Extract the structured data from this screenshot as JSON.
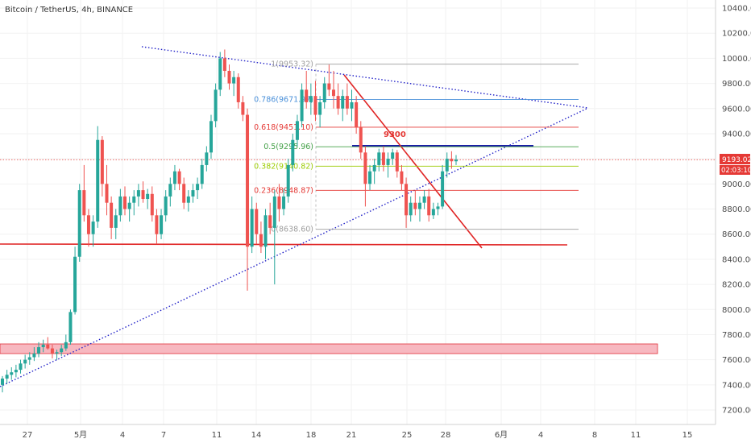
{
  "chart_data": {
    "type": "candlestick",
    "title": "Bitcoin / TetherUS, 4h, BINANCE",
    "ylim": [
      7100,
      10500
    ],
    "y_ticks": [
      7200,
      7400,
      7600,
      7800,
      8000,
      8200,
      8400,
      8600,
      8800,
      9000,
      9200,
      9400,
      9600,
      9800,
      10000,
      10200,
      10400
    ],
    "x_ticks": [
      "27",
      "5月",
      "4",
      "7",
      "11",
      "14",
      "18",
      "21",
      "25",
      "28",
      "6月",
      "4",
      "8",
      "11",
      "15"
    ],
    "last_price": "9193.02",
    "countdown": "02:03:10",
    "annotation": "9300",
    "fib_levels": [
      {
        "ratio": 1,
        "label": "1(9953.32)",
        "value": 9953.32,
        "color": "#9e9e9e"
      },
      {
        "ratio": 0.786,
        "label": "0.786(9671.97)",
        "value": 9671.97,
        "color": "#4a90d9"
      },
      {
        "ratio": 0.618,
        "label": "0.618(9451.10)",
        "value": 9451.1,
        "color": "#e53935"
      },
      {
        "ratio": 0.5,
        "label": "0.5(9295.96)",
        "value": 9295.96,
        "color": "#43a047"
      },
      {
        "ratio": 0.382,
        "label": "0.382(9140.82)",
        "value": 9140.82,
        "color": "#9ccc00"
      },
      {
        "ratio": 0.236,
        "label": "0.236(8948.87)",
        "value": 8948.87,
        "color": "#e53935"
      },
      {
        "ratio": 0,
        "label": "0(8638.60)",
        "value": 8638.6,
        "color": "#9e9e9e"
      }
    ],
    "candles": [
      [
        7400,
        7470,
        7340,
        7450
      ],
      [
        7450,
        7520,
        7410,
        7480
      ],
      [
        7480,
        7540,
        7440,
        7500
      ],
      [
        7500,
        7560,
        7460,
        7520
      ],
      [
        7520,
        7600,
        7490,
        7570
      ],
      [
        7570,
        7640,
        7530,
        7600
      ],
      [
        7600,
        7660,
        7560,
        7620
      ],
      [
        7620,
        7700,
        7590,
        7650
      ],
      [
        7650,
        7740,
        7620,
        7700
      ],
      [
        7700,
        7760,
        7660,
        7720
      ],
      [
        7720,
        7780,
        7680,
        7690
      ],
      [
        7690,
        7720,
        7610,
        7650
      ],
      [
        7650,
        7680,
        7600,
        7660
      ],
      [
        7660,
        7720,
        7630,
        7690
      ],
      [
        7690,
        7800,
        7670,
        7740
      ],
      [
        7740,
        8000,
        7720,
        7980
      ],
      [
        7980,
        8500,
        7960,
        8420
      ],
      [
        8420,
        9000,
        8380,
        8950
      ],
      [
        8950,
        9150,
        8700,
        8750
      ],
      [
        8750,
        8800,
        8500,
        8600
      ],
      [
        8600,
        8750,
        8500,
        8700
      ],
      [
        8700,
        9460,
        8650,
        9350
      ],
      [
        9350,
        9380,
        8900,
        9000
      ],
      [
        9000,
        9150,
        8750,
        8850
      ],
      [
        8850,
        8900,
        8560,
        8650
      ],
      [
        8650,
        8800,
        8560,
        8750
      ],
      [
        8750,
        8960,
        8700,
        8900
      ],
      [
        8900,
        8980,
        8750,
        8800
      ],
      [
        8800,
        8900,
        8700,
        8850
      ],
      [
        8850,
        8950,
        8750,
        8900
      ],
      [
        8900,
        9000,
        8820,
        8950
      ],
      [
        8950,
        9020,
        8850,
        8880
      ],
      [
        8880,
        8960,
        8800,
        8920
      ],
      [
        8920,
        8980,
        8700,
        8750
      ],
      [
        8750,
        8800,
        8520,
        8600
      ],
      [
        8600,
        8800,
        8560,
        8750
      ],
      [
        8750,
        8950,
        8700,
        8900
      ],
      [
        8900,
        9050,
        8820,
        9000
      ],
      [
        9000,
        9150,
        8950,
        9100
      ],
      [
        9100,
        9120,
        8950,
        9000
      ],
      [
        9000,
        9050,
        8800,
        8850
      ],
      [
        8850,
        8950,
        8780,
        8900
      ],
      [
        8900,
        9000,
        8850,
        8950
      ],
      [
        8950,
        9050,
        8880,
        9000
      ],
      [
        9000,
        9200,
        8960,
        9150
      ],
      [
        9150,
        9300,
        9100,
        9250
      ],
      [
        9250,
        9550,
        9200,
        9500
      ],
      [
        9500,
        9800,
        9450,
        9750
      ],
      [
        9750,
        10050,
        9700,
        10000
      ],
      [
        10000,
        10070,
        9850,
        9900
      ],
      [
        9900,
        9950,
        9750,
        9800
      ],
      [
        9800,
        9900,
        9700,
        9850
      ],
      [
        9850,
        9880,
        9600,
        9650
      ],
      [
        9650,
        9700,
        9500,
        9550
      ],
      [
        9550,
        9600,
        8150,
        8500
      ],
      [
        8500,
        8900,
        8450,
        8800
      ],
      [
        8800,
        8850,
        8520,
        8600
      ],
      [
        8600,
        8700,
        8450,
        8500
      ],
      [
        8500,
        8800,
        8400,
        8750
      ],
      [
        8750,
        8850,
        8600,
        8650
      ],
      [
        8650,
        8950,
        8200,
        8900
      ],
      [
        8900,
        9000,
        8700,
        8800
      ],
      [
        8800,
        8960,
        8750,
        8900
      ],
      [
        8900,
        9200,
        8850,
        9150
      ],
      [
        9150,
        9400,
        9100,
        9350
      ],
      [
        9350,
        9550,
        9300,
        9500
      ],
      [
        9500,
        9800,
        9450,
        9750
      ],
      [
        9750,
        9900,
        9600,
        9650
      ],
      [
        9650,
        9800,
        9550,
        9700
      ],
      [
        9700,
        9820,
        9500,
        9550
      ],
      [
        9550,
        9700,
        9450,
        9650
      ],
      [
        9650,
        9850,
        9600,
        9800
      ],
      [
        9800,
        9950,
        9700,
        9750
      ],
      [
        9750,
        9900,
        9600,
        9700
      ],
      [
        9700,
        9800,
        9550,
        9600
      ],
      [
        9600,
        9750,
        9500,
        9700
      ],
      [
        9700,
        9800,
        9550,
        9600
      ],
      [
        9600,
        9750,
        9500,
        9650
      ],
      [
        9650,
        9700,
        9400,
        9450
      ],
      [
        9450,
        9500,
        9200,
        9250
      ],
      [
        9250,
        9300,
        8820,
        9000
      ],
      [
        9000,
        9150,
        8950,
        9100
      ],
      [
        9100,
        9200,
        9000,
        9150
      ],
      [
        9150,
        9280,
        9100,
        9250
      ],
      [
        9250,
        9300,
        9100,
        9150
      ],
      [
        9150,
        9250,
        9050,
        9200
      ],
      [
        9200,
        9280,
        9150,
        9250
      ],
      [
        9250,
        9270,
        9050,
        9100
      ],
      [
        9100,
        9150,
        8950,
        9000
      ],
      [
        9000,
        9050,
        8650,
        8750
      ],
      [
        8750,
        8900,
        8700,
        8850
      ],
      [
        8850,
        8950,
        8750,
        8800
      ],
      [
        8800,
        8900,
        8700,
        8850
      ],
      [
        8850,
        8950,
        8800,
        8900
      ],
      [
        8900,
        8960,
        8700,
        8750
      ],
      [
        8750,
        8850,
        8720,
        8800
      ],
      [
        8800,
        8850,
        8750,
        8820
      ],
      [
        8820,
        9150,
        8800,
        9100
      ],
      [
        9100,
        9250,
        9050,
        9200
      ],
      [
        9200,
        9260,
        9120,
        9180
      ],
      [
        9180,
        9230,
        9150,
        9193
      ]
    ]
  }
}
